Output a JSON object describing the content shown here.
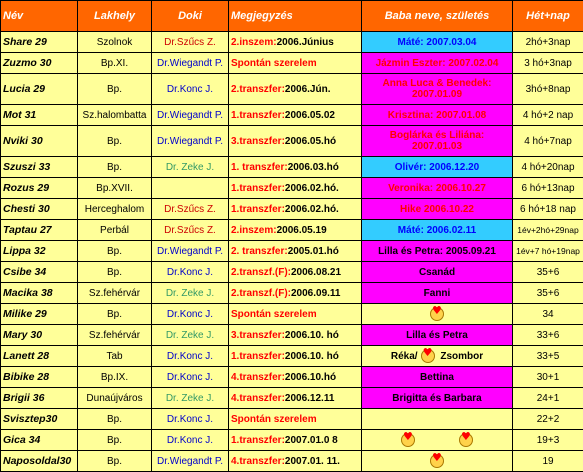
{
  "headers": [
    "Név",
    "Lakhely",
    "Doki",
    "Megjegyzés",
    "Baba neve, születés",
    "Hét+nap"
  ],
  "rows": [
    {
      "nev": "Share 29",
      "lakhely": "Szolnok",
      "doki": "Dr.Szűcs Z.",
      "doki_color": "red",
      "megj_label": "2.inszem:",
      "megj_value": "2006.Június",
      "baba": "Máté: 2007.03.04",
      "baba_bg": "cyan",
      "baba_color": "blue",
      "het": "2hó+3nap"
    },
    {
      "nev": "Zuzmo 30",
      "lakhely": "Bp.XI.",
      "doki": "Dr.Wiegandt P.",
      "doki_color": "blue",
      "megj_label": "Spontán szerelem",
      "megj_value": "",
      "baba": "Jázmin Eszter: 2007.02.04",
      "baba_bg": "magenta",
      "baba_color": "red",
      "het": "3 hó+3nap"
    },
    {
      "nev": "Lucia 29",
      "lakhely": "Bp.",
      "doki": "Dr.Konc J.",
      "doki_color": "blue",
      "megj_label": "2.transzfer:",
      "megj_value": "2006.Jún.",
      "baba": "Anna Luca & Benedek: 2007.01.09",
      "baba_bg": "magenta",
      "baba_color": "red",
      "het": "3hó+8nap"
    },
    {
      "nev": "Mot 31",
      "lakhely": "Sz.halombatta",
      "doki": "Dr.Wiegandt P.",
      "doki_color": "blue",
      "megj_label": "1.transzfer:",
      "megj_value": "2006.05.02",
      "baba": "Krisztina: 2007.01.08",
      "baba_bg": "magenta",
      "baba_color": "red",
      "het": "4 hó+2 nap"
    },
    {
      "nev": "Nviki 30",
      "lakhely": "Bp.",
      "doki": "Dr.Wiegandt P.",
      "doki_color": "blue",
      "megj_label": "3.transzfer:",
      "megj_value": "2006.05.hó",
      "baba": "Boglárka és Liliána: 2007.01.03",
      "baba_bg": "magenta",
      "baba_color": "red",
      "het": "4 hó+7nap"
    },
    {
      "nev": "Szuszi 33",
      "lakhely": "Bp.",
      "doki": "Dr. Zeke J.",
      "doki_color": "green",
      "megj_label": "1. transzfer:",
      "megj_value": "2006.03.hó",
      "baba": "Olivér: 2006.12.20",
      "baba_bg": "cyan",
      "baba_color": "blue",
      "het": "4 hó+20nap"
    },
    {
      "nev": "Rozus 29",
      "lakhely": "Bp.XVII.",
      "doki": "",
      "doki_color": "blue",
      "megj_label": "1.transzfer:",
      "megj_value": "2006.02.hó.",
      "baba": "Veronika: 2006.10.27",
      "baba_bg": "magenta",
      "baba_color": "red",
      "het": "6 hó+13nap"
    },
    {
      "nev": "Chesti 30",
      "lakhely": "Herceghalom",
      "doki": "Dr.Szűcs Z.",
      "doki_color": "red",
      "megj_label": "1.transzfer:",
      "megj_value": "2006.02.hó.",
      "baba": "Hike 2006.10.22",
      "baba_bg": "magenta",
      "baba_color": "red",
      "het": "6 hó+18 nap"
    },
    {
      "nev": "Taptau 27",
      "lakhely": "Perbál",
      "doki": "Dr.Szűcs Z.",
      "doki_color": "red",
      "megj_label": "2.inszem:",
      "megj_value": "2006.05.19",
      "baba": "Máté: 2006.02.11",
      "baba_bg": "cyan",
      "baba_color": "blue",
      "het": "1év+2hó+29nap"
    },
    {
      "nev": "Lippa 32",
      "lakhely": "Bp.",
      "doki": "Dr.Wiegandt P.",
      "doki_color": "blue",
      "megj_label": "2. transzfer:",
      "megj_value": "2005.01.hó",
      "baba": "Lilla és Petra: 2005.09.21",
      "baba_bg": "magenta",
      "baba_color": "black",
      "het": "1év+7 hó+19nap"
    },
    {
      "nev": "Csibe 34",
      "lakhely": "Bp.",
      "doki": "Dr.Konc J.",
      "doki_color": "blue",
      "megj_label": "2.transzf.(F):",
      "megj_value": "2006.08.21",
      "baba": "Csanád",
      "baba_bg": "magenta",
      "baba_color": "black",
      "het": "35+6"
    },
    {
      "nev": "Macika 38",
      "lakhely": "Sz.fehérvár",
      "doki": "Dr. Zeke J.",
      "doki_color": "green",
      "megj_label": "2.transzf.(F):",
      "megj_value": "2006.09.11",
      "baba": "Fanni",
      "baba_bg": "magenta",
      "baba_color": "black",
      "het": "35+6"
    },
    {
      "nev": "Milike 29",
      "lakhely": "Bp.",
      "doki": "Dr.Konc J.",
      "doki_color": "blue",
      "megj_label": "Spontán szerelem",
      "megj_value": "",
      "baba": "",
      "baba_bg": "yellow",
      "baba_color": "black",
      "het": "34",
      "hearts": 1
    },
    {
      "nev": "Mary 30",
      "lakhely": "Sz.fehérvár",
      "doki": "Dr. Zeke J.",
      "doki_color": "green",
      "megj_label": "3.transzfer:",
      "megj_value": "2006.10. hó",
      "baba": "Lilla és Petra",
      "baba_bg": "magenta",
      "baba_color": "black",
      "het": "33+6"
    },
    {
      "nev": "Lanett 28",
      "lakhely": "Tab",
      "doki": "Dr.Konc J.",
      "doki_color": "blue",
      "megj_label": "1.transzfer:",
      "megj_value": "2006.10. hó",
      "baba": "Réka/ Zsombor",
      "baba_bg": "yellow",
      "baba_color": "black",
      "het": "33+5"
    },
    {
      "nev": "Bibike 28",
      "lakhely": "Bp.IX.",
      "doki": "Dr.Konc J.",
      "doki_color": "blue",
      "megj_label": "4.transzfer:",
      "megj_value": "2006.10.hó",
      "baba": "Bettina",
      "baba_bg": "magenta",
      "baba_color": "black",
      "het": "30+1"
    },
    {
      "nev": "Brigii 36",
      "lakhely": "Dunaújváros",
      "doki": "Dr. Zeke J.",
      "doki_color": "green",
      "megj_label": "4.transzfer:",
      "megj_value": "2006.12.11",
      "baba": "Brigitta és Barbara",
      "baba_bg": "magenta",
      "baba_color": "black",
      "het": "24+1"
    },
    {
      "nev": "Svisztер30",
      "lakhely": "Bp.",
      "doki": "Dr.Konc J.",
      "doki_color": "blue",
      "megj_label": "Spontán szerelem",
      "megj_value": "",
      "baba": "",
      "baba_bg": "yellow",
      "baba_color": "black",
      "het": "22+2"
    },
    {
      "nev": "Gica 34",
      "lakhely": "Bp.",
      "doki": "Dr.Konc J.",
      "doki_color": "blue",
      "megj_label": "1.transzfer:",
      "megj_value": "2007.01.0 8",
      "baba": "",
      "baba_bg": "yellow",
      "baba_color": "black",
      "het": "19+3",
      "hearts": 2
    },
    {
      "nev": "Naposoldal30",
      "lakhely": "Bp.",
      "doki": "Dr.Wiegandt P.",
      "doki_color": "blue",
      "megj_label": "4.transzfer:",
      "megj_value": "2007.01. 11.",
      "baba": "",
      "baba_bg": "yellow",
      "baba_color": "black",
      "het": "19",
      "hearts": 1
    }
  ]
}
